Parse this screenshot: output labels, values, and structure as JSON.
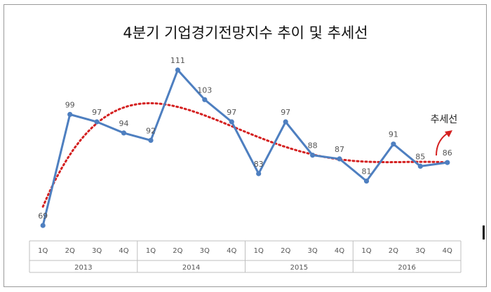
{
  "chart_data": {
    "type": "line",
    "title": "4분기 기업경기전망지수 추이 및 추세선",
    "quarters": [
      "1Q",
      "2Q",
      "3Q",
      "4Q",
      "1Q",
      "2Q",
      "3Q",
      "4Q",
      "1Q",
      "2Q",
      "3Q",
      "4Q",
      "1Q",
      "2Q",
      "3Q",
      "4Q"
    ],
    "years": [
      "2013",
      "2014",
      "2015",
      "2016"
    ],
    "series": [
      {
        "values": [
          69,
          99,
          97,
          94,
          92,
          111,
          103,
          97,
          83,
          97,
          88,
          87,
          81,
          91,
          85,
          86
        ],
        "color": "#4e7fc0"
      }
    ],
    "trendline": {
      "label": "추세선",
      "type": "polynomial",
      "color": "#d42020"
    },
    "data_labels": true,
    "grid": false,
    "ylim": [
      60,
      120
    ]
  }
}
